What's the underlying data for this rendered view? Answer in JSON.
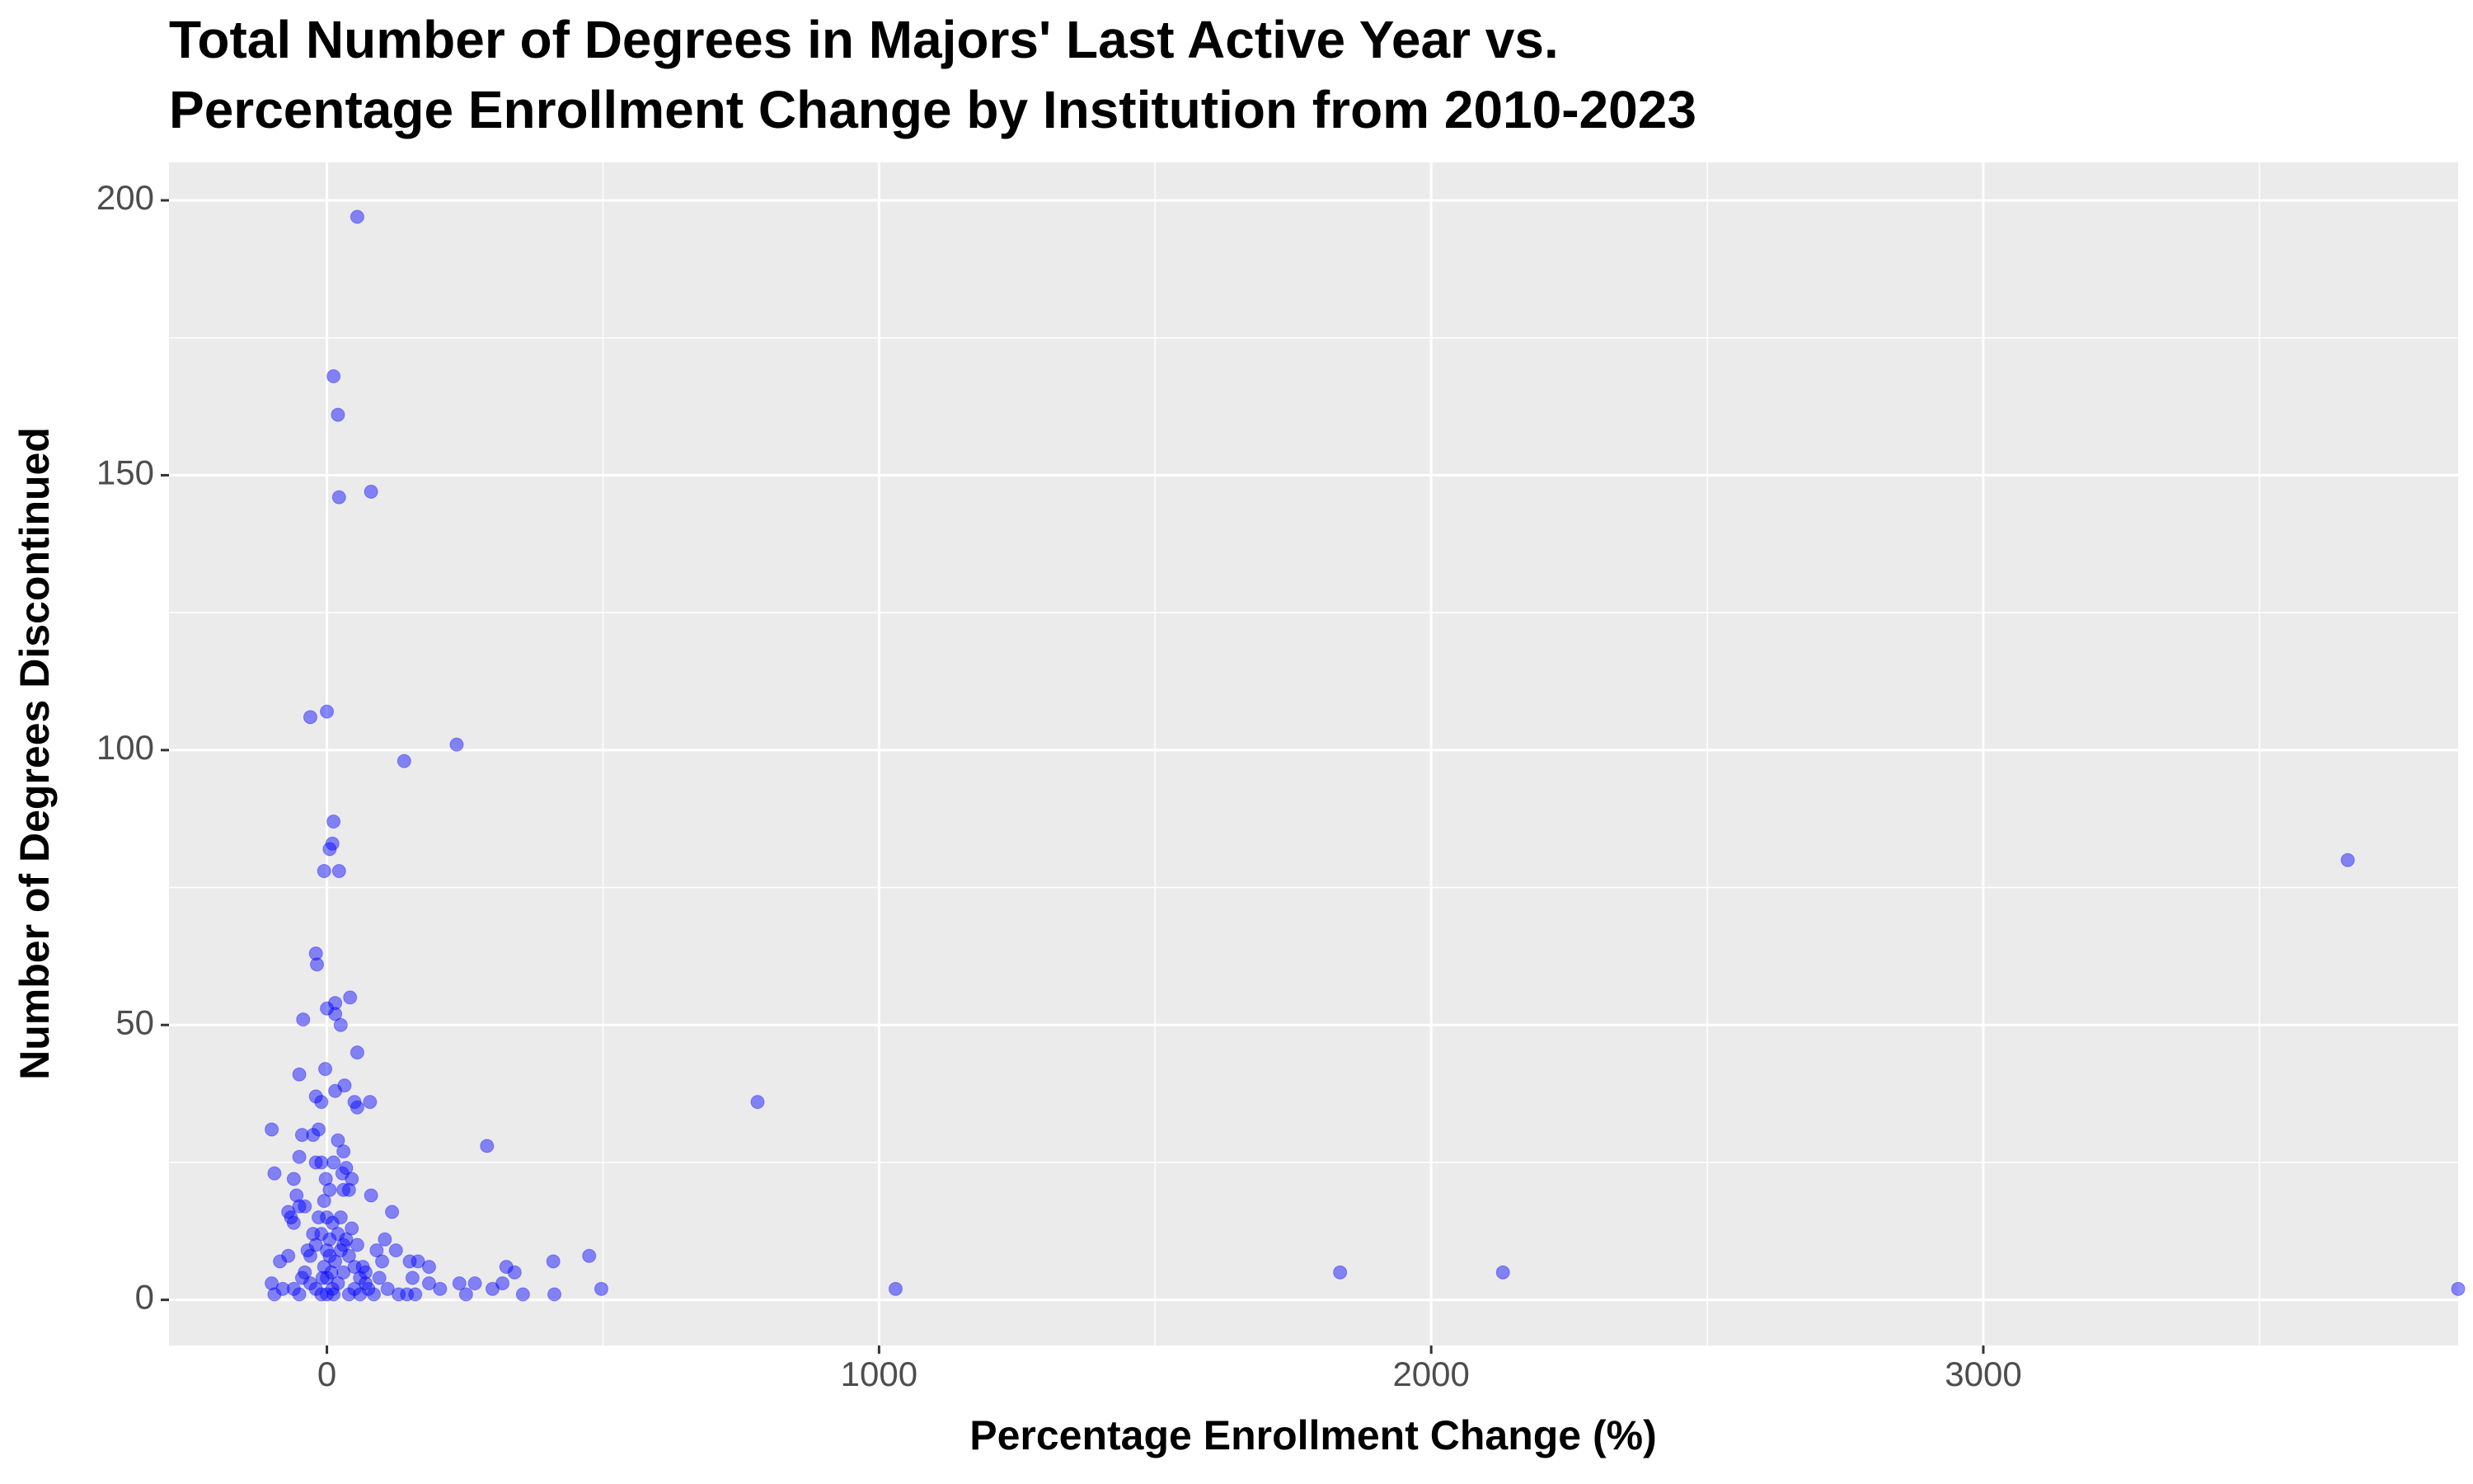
{
  "chart_data": {
    "type": "scatter",
    "title": [
      "Total Number of Degrees in Majors' Last Active Year vs.",
      "Percentage Enrollment Change by Institution from 2010-2023"
    ],
    "x_label": "Percentage Enrollment Change (%)",
    "y_label": "Number of Degrees Discontinued",
    "xlim": [
      -286,
      3860
    ],
    "ylim": [
      -8.3,
      206.9
    ],
    "xticks": [
      0,
      1000,
      2000,
      3000
    ],
    "yticks": [
      0,
      50,
      100,
      150,
      200
    ],
    "grid": true,
    "color": "#0000ff",
    "x": [
      55,
      12,
      20,
      22,
      80,
      -30,
      0,
      235,
      140,
      12,
      10,
      5,
      -5,
      22,
      3660,
      -20,
      -18,
      15,
      42,
      0,
      15,
      25,
      -43,
      55,
      -50,
      -3,
      32,
      15,
      -20,
      -10,
      50,
      55,
      78,
      780,
      -100,
      -15,
      -45,
      -25,
      290,
      20,
      30,
      -50,
      35,
      -95,
      -60,
      -20,
      -10,
      45,
      80,
      -55,
      118,
      -70,
      -65,
      -60,
      -50,
      -40,
      30,
      40,
      105,
      125,
      150,
      165,
      325,
      340,
      410,
      475,
      497,
      412,
      355,
      1030,
      1835,
      2130,
      3860,
      -85,
      -70,
      -100,
      -95,
      185,
      185,
      205,
      240,
      268,
      252,
      300,
      318,
      -30,
      -20,
      -10,
      0,
      10,
      20,
      30,
      40,
      50,
      60,
      70,
      -40,
      -30,
      -20,
      -10,
      0,
      10,
      20,
      30,
      -5,
      5,
      15,
      25,
      35,
      45,
      55,
      65,
      75,
      85,
      95,
      100,
      110,
      130,
      145,
      155,
      160,
      -60,
      -50,
      -80,
      -15,
      -5,
      5,
      25,
      -25,
      -35,
      0,
      0,
      8,
      -8,
      12,
      40,
      50,
      60,
      90,
      -45,
      5,
      -2,
      12,
      28,
      70
    ],
    "y": [
      197,
      168,
      161,
      146,
      147,
      106,
      107,
      101,
      98,
      87,
      83,
      82,
      78,
      78,
      80,
      63,
      61,
      54,
      55,
      53,
      52,
      50,
      51,
      45,
      41,
      42,
      39,
      38,
      37,
      36,
      36,
      35,
      36,
      36,
      31,
      31,
      30,
      30,
      28,
      29,
      27,
      26,
      24,
      23,
      22,
      25,
      25,
      22,
      19,
      19,
      16,
      16,
      15,
      14,
      17,
      17,
      20,
      20,
      11,
      9,
      7,
      7,
      6,
      5,
      7,
      8,
      2,
      1,
      1,
      2,
      5,
      5,
      2,
      7,
      8,
      3,
      1,
      6,
      3,
      2,
      3,
      3,
      1,
      2,
      3,
      8,
      10,
      12,
      15,
      14,
      12,
      10,
      8,
      6,
      4,
      3,
      5,
      3,
      2,
      1,
      1,
      2,
      3,
      5,
      6,
      8,
      7,
      9,
      11,
      13,
      10,
      6,
      2,
      1,
      4,
      7,
      2,
      1,
      1,
      4,
      1,
      2,
      1,
      2,
      15,
      18,
      20,
      15,
      12,
      9,
      4,
      9,
      5,
      4,
      1,
      1,
      2,
      1,
      9,
      4,
      11,
      22,
      25,
      23,
      5
    ]
  }
}
